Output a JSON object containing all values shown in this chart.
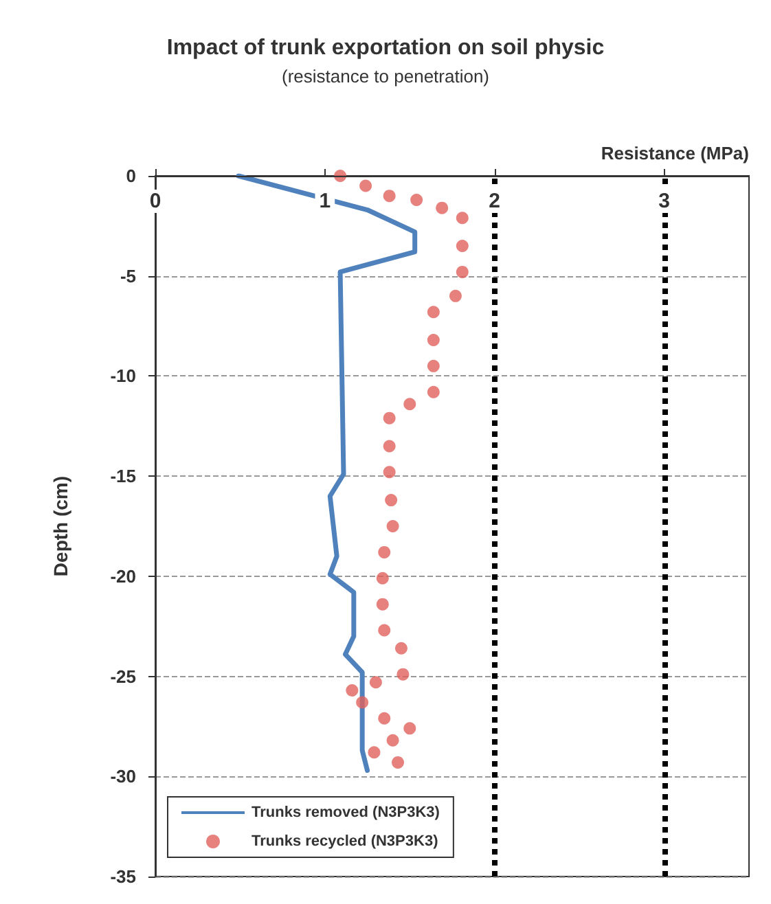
{
  "chart_data": {
    "type": "line",
    "title": "Impact of trunk exportation on soil physic",
    "subtitle": "(resistance to penetration)",
    "xlabel": "Resistance (MPa)",
    "ylabel": "Depth (cm)",
    "xlim": [
      0,
      3.5
    ],
    "xticks": [
      0,
      1,
      2,
      3
    ],
    "ylim": [
      -35,
      0
    ],
    "yticks": [
      0,
      -5,
      -10,
      -15,
      -20,
      -25,
      -30,
      -35
    ],
    "grid": "y",
    "legend": "bottom left",
    "ref_lines": [
      {
        "axis": "x",
        "value": 2,
        "color": "#000000",
        "line_style": "dotted"
      },
      {
        "axis": "x",
        "value": 3,
        "color": "#000000",
        "line_style": "dotted"
      }
    ],
    "series": [
      {
        "name": "Trunks removed (N3P3K3)",
        "type": "line",
        "marker": "none",
        "color": "#4f81bd",
        "x": [
          0.49,
          1.25,
          1.53,
          1.53,
          1.09,
          1.11,
          1.03,
          1.07,
          1.03,
          1.17,
          1.17,
          1.12,
          1.22,
          1.22,
          1.25
        ],
        "values": [
          0,
          -1.7,
          -2.8,
          -3.8,
          -4.8,
          -14.9,
          -16,
          -19,
          -19.9,
          -20.8,
          -23,
          -23.9,
          -24.8,
          -28.7,
          -29.7
        ]
      },
      {
        "name": "Trunks recycled (N3P3K3)",
        "type": "scatter",
        "marker": "circle",
        "color": "#e0625c",
        "x": [
          1.09,
          1.24,
          1.38,
          1.54,
          1.69,
          1.81,
          1.81,
          1.81,
          1.77,
          1.64,
          1.64,
          1.64,
          1.64,
          1.5,
          1.38,
          1.38,
          1.38,
          1.39,
          1.4,
          1.35,
          1.34,
          1.34,
          1.35,
          1.45,
          1.46,
          1.3,
          1.16,
          1.22,
          1.35,
          1.5,
          1.4,
          1.29,
          1.43
        ],
        "values": [
          0,
          -0.5,
          -1,
          -1.2,
          -1.6,
          -2.1,
          -3.5,
          -4.8,
          -6,
          -6.8,
          -8.2,
          -9.5,
          -10.8,
          -11.4,
          -12.1,
          -13.5,
          -14.8,
          -16.2,
          -17.5,
          -18.8,
          -20.1,
          -21.4,
          -22.7,
          -23.6,
          -24.9,
          -25.3,
          -25.7,
          -26.3,
          -27.1,
          -27.6,
          -28.2,
          -28.8,
          -29.3
        ]
      }
    ]
  }
}
